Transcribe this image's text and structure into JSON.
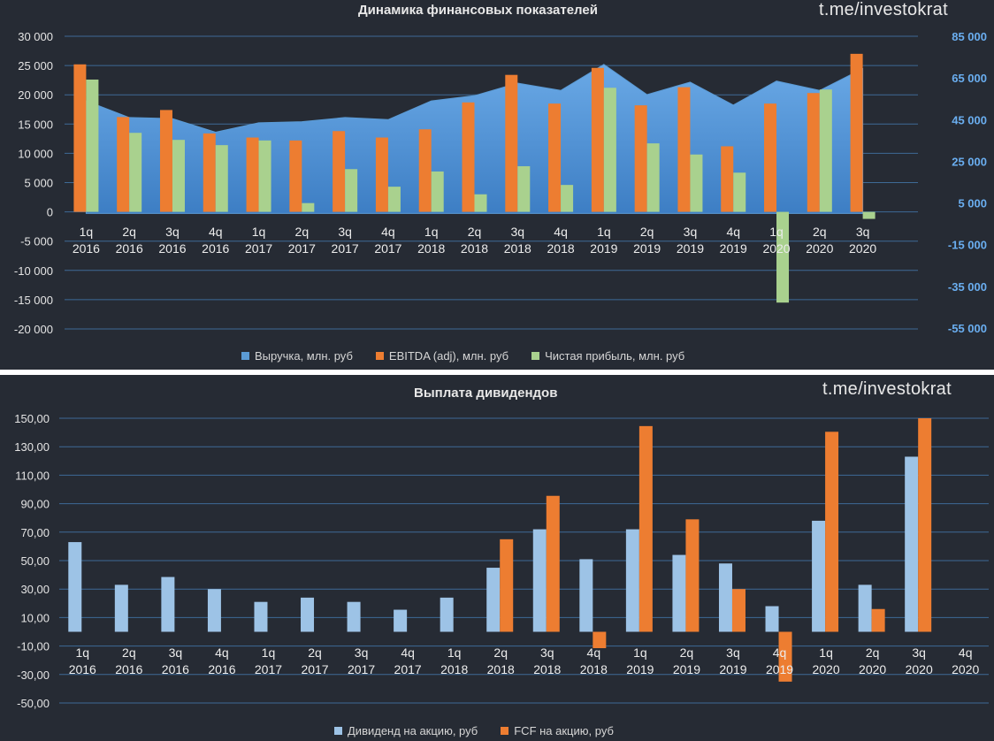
{
  "chart_data": [
    {
      "type": "bar",
      "title": "Динамика финансовых показателей",
      "watermark": "t.me/investokrat",
      "categories": [
        "1q\n2016",
        "2q\n2016",
        "3q\n2016",
        "4q\n2016",
        "1q\n2017",
        "2q\n2017",
        "3q\n2017",
        "4q\n2017",
        "1q\n2018",
        "2q\n2018",
        "3q\n2018",
        "4q\n2018",
        "1q\n2019",
        "2q\n2019",
        "3q\n2019",
        "4q\n2019",
        "1q\n2020",
        "2q\n2020",
        "3q\n2020"
      ],
      "ylim": [
        -20000,
        30000
      ],
      "y_ticks": [
        "30 000",
        "25 000",
        "20 000",
        "15 000",
        "10 000",
        "5 000",
        "0",
        "-5 000",
        "-10 000",
        "-15 000",
        "-20 000"
      ],
      "y2lim": [
        -55000,
        85000
      ],
      "y2_ticks": [
        "85 000",
        "65 000",
        "45 000",
        "25 000",
        "5 000",
        "-15 000",
        "-35 000",
        "-55 000"
      ],
      "grid": true,
      "legend_position": "bottom",
      "series": [
        {
          "name": "Выручка, млн. руб",
          "type": "area",
          "axis": "right",
          "color": "#5b9bd5",
          "values": [
            54000,
            46000,
            45500,
            39000,
            43500,
            44000,
            46000,
            45000,
            54000,
            56500,
            62500,
            59000,
            71500,
            57000,
            63000,
            52000,
            63500,
            59000,
            69500
          ]
        },
        {
          "name": "EBITDA (adj), млн. руб",
          "type": "bar",
          "axis": "left",
          "color": "#ed7d31",
          "values": [
            25200,
            16200,
            17400,
            13400,
            12700,
            12200,
            13800,
            12700,
            14100,
            18700,
            23400,
            18500,
            24600,
            18200,
            21300,
            11200,
            18500,
            20300,
            27000
          ]
        },
        {
          "name": "Чистая прибыль, млн. руб",
          "type": "bar",
          "axis": "left",
          "color": "#a9d18e",
          "values": [
            22600,
            13500,
            12300,
            11400,
            12200,
            1500,
            7300,
            4300,
            6900,
            3000,
            7800,
            4600,
            21200,
            11700,
            9800,
            6700,
            -15500,
            20900,
            -1200
          ]
        }
      ]
    },
    {
      "type": "bar",
      "title": "Выплата дивидендов",
      "watermark": "t.me/investokrat",
      "categories": [
        "1q\n2016",
        "2q\n2016",
        "3q\n2016",
        "4q\n2016",
        "1q\n2017",
        "2q\n2017",
        "3q\n2017",
        "4q\n2017",
        "1q\n2018",
        "2q\n2018",
        "3q\n2018",
        "4q\n2018",
        "1q\n2019",
        "2q\n2019",
        "3q\n2019",
        "4q\n2019",
        "1q\n2020",
        "2q\n2020",
        "3q\n2020",
        "4q\n2020"
      ],
      "ylim": [
        -50,
        150
      ],
      "y_ticks": [
        "150,00",
        "130,00",
        "110,00",
        "90,00",
        "70,00",
        "50,00",
        "30,00",
        "10,00",
        "-10,00",
        "-30,00",
        "-50,00"
      ],
      "grid": true,
      "legend_position": "bottom",
      "series": [
        {
          "name": "Дивиденд на акцию, руб",
          "color": "#9dc3e6",
          "values": [
            63,
            33,
            38.5,
            30,
            21,
            24,
            21,
            15.5,
            24,
            45,
            72,
            51,
            72,
            54,
            48,
            18,
            78,
            33,
            123,
            null
          ]
        },
        {
          "name": "FCF на акцию, руб",
          "color": "#ed7d31",
          "values": [
            null,
            null,
            null,
            null,
            null,
            null,
            null,
            null,
            null,
            65,
            95.5,
            -11.5,
            144.5,
            79,
            30,
            -35,
            140.5,
            16,
            150,
            null
          ]
        }
      ]
    }
  ]
}
